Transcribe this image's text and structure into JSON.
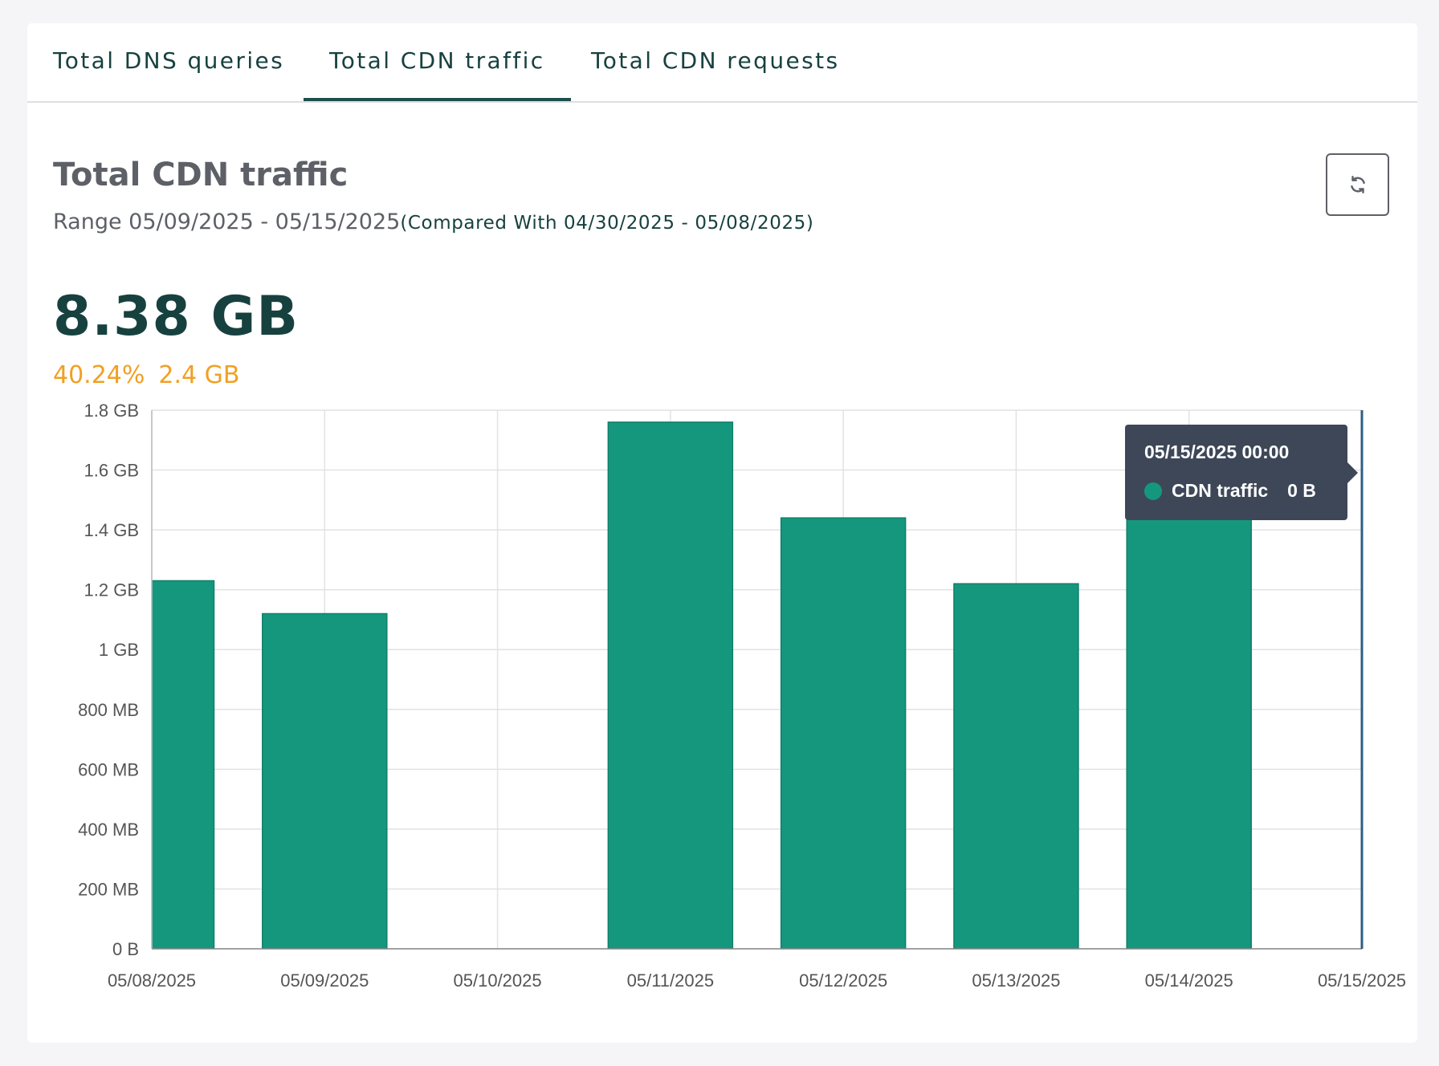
{
  "tabs": [
    {
      "label": "Total DNS queries",
      "active": false
    },
    {
      "label": "Total CDN traffic",
      "active": true
    },
    {
      "label": "Total CDN requests",
      "active": false
    }
  ],
  "panel": {
    "title": "Total CDN traffic",
    "range": "Range 05/09/2025 - 05/15/2025",
    "compared": "(Compared With 04/30/2025 - 05/08/2025)",
    "total": "8.38 GB",
    "delta_percent": "40.24%",
    "delta_value": "2.4 GB",
    "refresh_icon": "refresh-icon"
  },
  "tooltip": {
    "date": "05/15/2025 00:00",
    "series": "CDN traffic",
    "value": "0 B"
  },
  "colors": {
    "bar": "#15977e",
    "accent": "#17413f",
    "delta": "#f0a024",
    "tooltip_bg": "#3d4758"
  },
  "chart_data": {
    "type": "bar",
    "categories": [
      "05/08/2025",
      "05/09/2025",
      "05/10/2025",
      "05/11/2025",
      "05/12/2025",
      "05/13/2025",
      "05/14/2025",
      "05/15/2025"
    ],
    "values_gb": [
      1.23,
      1.12,
      0,
      1.76,
      1.44,
      1.22,
      1.58,
      0
    ],
    "series": [
      {
        "name": "CDN traffic"
      }
    ],
    "y_ticks": [
      "0 B",
      "200 MB",
      "400 MB",
      "600 MB",
      "800 MB",
      "1 GB",
      "1.2 GB",
      "1.4 GB",
      "1.6 GB",
      "1.8 GB"
    ],
    "ylim_gb": [
      0,
      1.8
    ],
    "grid": true
  }
}
